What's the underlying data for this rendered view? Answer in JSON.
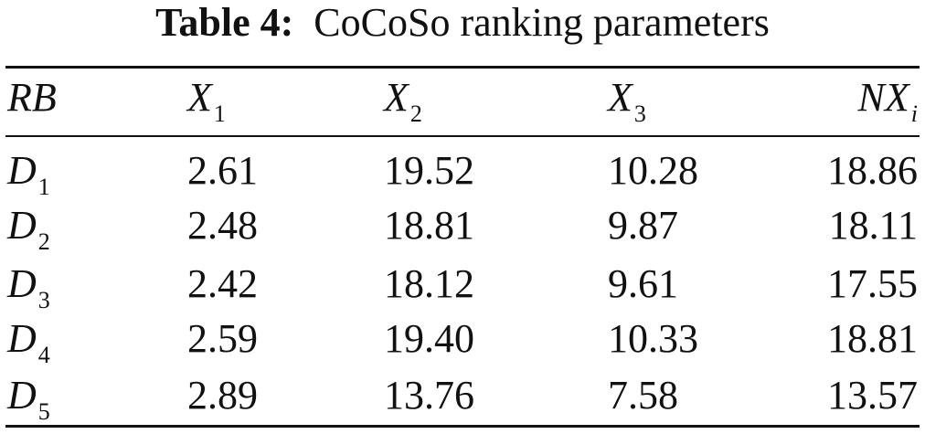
{
  "caption": {
    "label": "Table 4:",
    "title": "CoCoSo ranking parameters"
  },
  "header": [
    {
      "base": "RB",
      "sub": ""
    },
    {
      "base": "X",
      "sub": "1"
    },
    {
      "base": "X",
      "sub": "2"
    },
    {
      "base": "X",
      "sub": "3"
    },
    {
      "base": "NX",
      "sub": "i"
    }
  ],
  "rows": [
    {
      "base": "D",
      "sub": "1",
      "values": [
        "2.61",
        "19.52",
        "10.28",
        "18.86"
      ]
    },
    {
      "base": "D",
      "sub": "2",
      "values": [
        "2.48",
        "18.81",
        "9.87",
        "18.11"
      ]
    },
    {
      "base": "D",
      "sub": "3",
      "values": [
        "2.42",
        "18.12",
        "9.61",
        "17.55"
      ]
    },
    {
      "base": "D",
      "sub": "4",
      "values": [
        "2.59",
        "19.40",
        "10.33",
        "18.81"
      ]
    },
    {
      "base": "D",
      "sub": "5",
      "values": [
        "2.89",
        "13.76",
        "7.58",
        "13.57"
      ]
    }
  ]
}
